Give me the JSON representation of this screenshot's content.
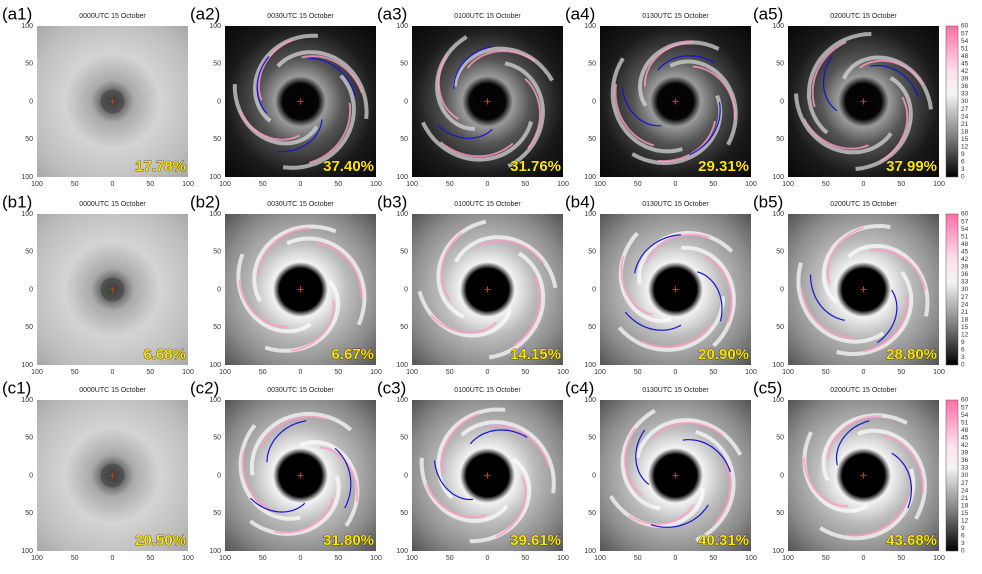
{
  "panels": [
    {
      "label": "(a1)",
      "time": "0000UTC 15 October",
      "percent": "17.78%"
    },
    {
      "label": "(a2)",
      "time": "0030UTC 15 October",
      "percent": "37.40%"
    },
    {
      "label": "(a3)",
      "time": "0100UTC 15 October",
      "percent": "31.76%"
    },
    {
      "label": "(a4)",
      "time": "0130UTC 15 October",
      "percent": "29.31%"
    },
    {
      "label": "(a5)",
      "time": "0200UTC 15 October",
      "percent": "37.99%"
    },
    {
      "label": "(b1)",
      "time": "0000UTC 15 October",
      "percent": "6.68%"
    },
    {
      "label": "(b2)",
      "time": "0030UTC 15 October",
      "percent": "6.67%"
    },
    {
      "label": "(b3)",
      "time": "0100UTC 15 October",
      "percent": "14.15%"
    },
    {
      "label": "(b4)",
      "time": "0130UTC 15 October",
      "percent": "20.90%"
    },
    {
      "label": "(b5)",
      "time": "0200UTC 15 October",
      "percent": "28.80%"
    },
    {
      "label": "(c1)",
      "time": "0000UTC 15 October",
      "percent": "20.50%"
    },
    {
      "label": "(c2)",
      "time": "0030UTC 15 October",
      "percent": "31.80%"
    },
    {
      "label": "(c3)",
      "time": "0100UTC 15 October",
      "percent": "39.61%"
    },
    {
      "label": "(c4)",
      "time": "0130UTC 15 October",
      "percent": "40.31%"
    },
    {
      "label": "(c5)",
      "time": "0200UTC 15 October",
      "percent": "43.68%"
    }
  ],
  "axis_ticks": [
    "100",
    "50",
    "0",
    "50",
    "100"
  ],
  "colorbar_ticks": [
    "60",
    "57",
    "54",
    "51",
    "48",
    "45",
    "42",
    "39",
    "36",
    "33",
    "30",
    "27",
    "24",
    "21",
    "18",
    "15",
    "12",
    "9",
    "6",
    "3",
    "0"
  ]
}
